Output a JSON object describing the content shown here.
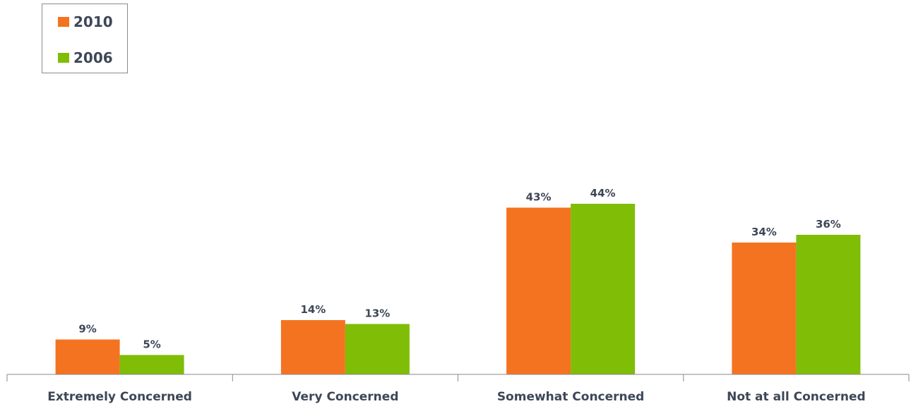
{
  "chart_data": {
    "type": "bar",
    "title": "",
    "xlabel": "",
    "ylabel": "",
    "ylim": [
      0,
      46
    ],
    "grid": false,
    "legend_position": "top-left",
    "categories": [
      "Extremely Concerned",
      "Very Concerned",
      "Somewhat Concerned",
      "Not at all Concerned"
    ],
    "series": [
      {
        "name": "2010",
        "color": "#f47321",
        "values": [
          9,
          14,
          43,
          34
        ],
        "labels": [
          "9%",
          "14%",
          "43%",
          "34%"
        ]
      },
      {
        "name": "2006",
        "color": "#7fbd07",
        "values": [
          5,
          13,
          44,
          36
        ],
        "labels": [
          "5%",
          "13%",
          "44%",
          "36%"
        ]
      }
    ]
  },
  "legend": {
    "items": [
      {
        "label": "2010",
        "color": "#f47321"
      },
      {
        "label": "2006",
        "color": "#7fbd07"
      }
    ]
  }
}
